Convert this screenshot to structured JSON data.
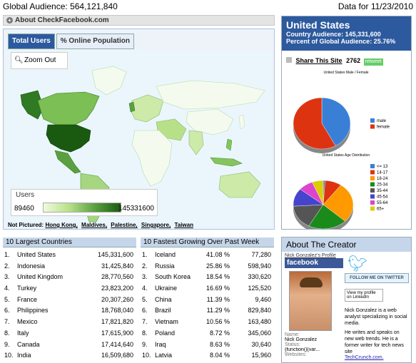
{
  "header": {
    "audience_label": "Global Audience: 564,121,840",
    "date_label": "Data for 11/23/2010"
  },
  "about_bar": {
    "label": "About CheckFacebook.com"
  },
  "map": {
    "tabs": [
      {
        "label": "Total Users"
      },
      {
        "label": "% Online Population"
      }
    ],
    "zoom_label": "Zoom Out",
    "legend": {
      "title": "Users",
      "min": "89460",
      "max": "145331600"
    },
    "not_pictured": {
      "label": "Not Pictured:",
      "items": [
        "Hong Kong,",
        "Maldives,",
        "Palestine,",
        "Singapore,",
        "Taiwan"
      ]
    },
    "colors": {
      "water": "#eaf6fc",
      "land": "#f4fbee",
      "low": "#cdeaa8",
      "mid": "#86c460",
      "high": "#1a5a10"
    }
  },
  "largest": {
    "title": "10 Largest Countries",
    "rows": [
      {
        "rank": "1.",
        "country": "United States",
        "value": "145,331,600"
      },
      {
        "rank": "2.",
        "country": "Indonesia",
        "value": "31,425,840"
      },
      {
        "rank": "3.",
        "country": "United Kingdom",
        "value": "28,770,560"
      },
      {
        "rank": "4.",
        "country": "Turkey",
        "value": "23,823,200"
      },
      {
        "rank": "5.",
        "country": "France",
        "value": "20,307,260"
      },
      {
        "rank": "6.",
        "country": "Philippines",
        "value": "18,768,040"
      },
      {
        "rank": "7.",
        "country": "Mexico",
        "value": "17,821,820"
      },
      {
        "rank": "8.",
        "country": "Italy",
        "value": "17,615,900"
      },
      {
        "rank": "9.",
        "country": "Canada",
        "value": "17,414,640"
      },
      {
        "rank": "10.",
        "country": "India",
        "value": "16,509,680"
      }
    ]
  },
  "fastest": {
    "title": "10 Fastest Growing Over Past Week",
    "rows": [
      {
        "rank": "1.",
        "country": "Iceland",
        "pct": "41.08 %",
        "value": "77,280"
      },
      {
        "rank": "2.",
        "country": "Russia",
        "pct": "25.86 %",
        "value": "598,940"
      },
      {
        "rank": "3.",
        "country": "South Korea",
        "pct": "18.54 %",
        "value": "330,620"
      },
      {
        "rank": "4.",
        "country": "Ukraine",
        "pct": "16.69 %",
        "value": "125,520"
      },
      {
        "rank": "5.",
        "country": "China",
        "pct": "11.39 %",
        "value": "9,460"
      },
      {
        "rank": "6.",
        "country": "Brazil",
        "pct": "11.29 %",
        "value": "829,840"
      },
      {
        "rank": "7.",
        "country": "Vietnam",
        "pct": "10.56 %",
        "value": "163,480"
      },
      {
        "rank": "8.",
        "country": "Poland",
        "pct": "8.72 %",
        "value": "345,060"
      },
      {
        "rank": "9.",
        "country": "Iraq",
        "pct": "8.63 %",
        "value": "30,640"
      },
      {
        "rank": "10.",
        "country": "Latvia",
        "pct": "8.04 %",
        "value": "15,960"
      }
    ]
  },
  "country_panel": {
    "name": "United States",
    "audience": "Country Audience: 145,331,600",
    "percent": "Percent of Global Audience: 25.76%",
    "share_label": "Share This Site",
    "share_count": "2762",
    "retweet_label": "retweet",
    "chart_data": [
      {
        "type": "pie",
        "title": "United States Male / Female",
        "labels": [
          "male",
          "female"
        ],
        "values": [
          42,
          58
        ],
        "colors": [
          "#3a7fd6",
          "#dd3311"
        ]
      },
      {
        "type": "pie",
        "title": "United States Age Distribution",
        "labels": [
          "<= 13",
          "14-17",
          "18-24",
          "25-34",
          "35-44",
          "45-54",
          "55-64",
          "65+"
        ],
        "values": [
          1,
          9,
          27,
          21,
          16,
          12,
          8,
          6
        ],
        "colors": [
          "#3a7fd6",
          "#dd3311",
          "#ff9900",
          "#1a8a1a",
          "#555555",
          "#4444cc",
          "#dd44cc",
          "#ddcc00"
        ]
      }
    ]
  },
  "creator": {
    "title": "About The Creator",
    "profile_link": "Nick Gonzalez's Profile",
    "facebook_label": "facebook",
    "name_label": "Name:",
    "name": "Nick Gonzalez",
    "status_label": "Status:",
    "status": "{function(){var...",
    "websites_label": "Websites:",
    "follow_label": "FOLLOW ME ON TWITTER",
    "linkedin_label": "View my profile on LinkedIn",
    "bio": "Nick Gonzalez is a web analyst specializing in social media.",
    "bio2": "He writes and speaks on new web trends. He is a former writer for tech news site",
    "bio_link": "TechCrunch.com."
  }
}
